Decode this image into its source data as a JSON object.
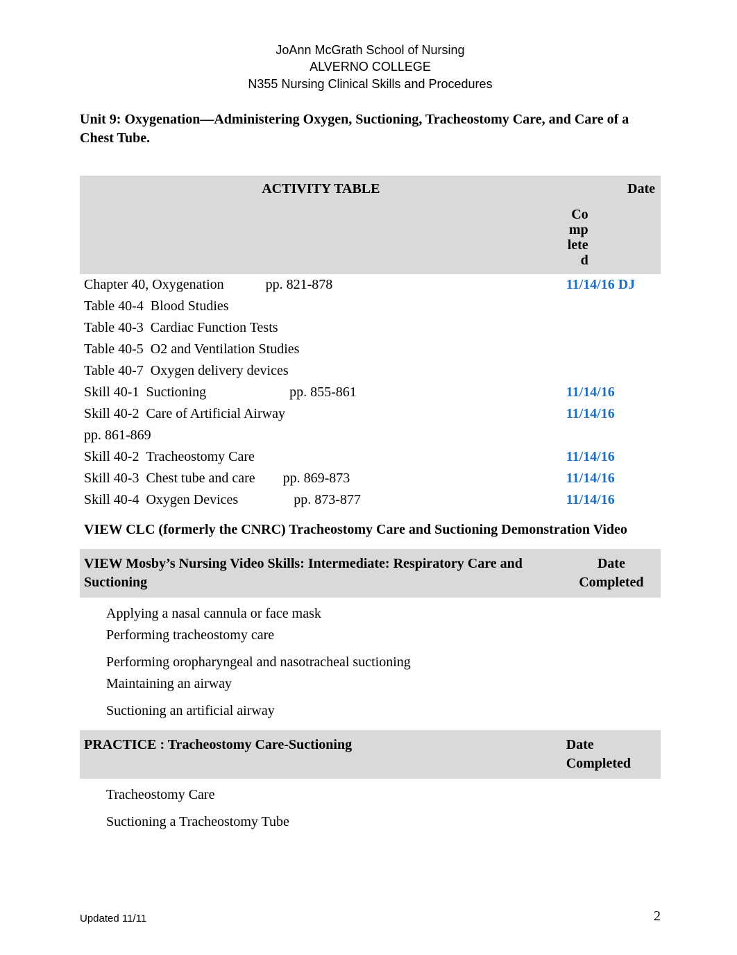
{
  "header": {
    "line1": "JoAnn McGrath School of Nursing",
    "line2": "ALVERNO COLLEGE",
    "line3": "N355 Nursing Clinical Skills and Procedures"
  },
  "unit_title": "Unit 9: Oxygenation—Administering Oxygen, Suctioning, Tracheostomy Care, and Care of a Chest Tube.",
  "activity_table": {
    "header_left": "ACTIVITY TABLE",
    "header_right_top": "Date",
    "header_right_sub": "Completed",
    "rows": [
      {
        "left": "Chapter 40, Oxygenation   pp. 821-878",
        "right": "11/14/16 DJ",
        "right_color": "#1f6fc0"
      },
      {
        "left": "Table 40-4  Blood Studies",
        "right": ""
      },
      {
        "left": "Table 40-3  Cardiac Function Tests",
        "right": ""
      },
      {
        "left": "Table 40-5  O2 and Ventilation Studies",
        "right": ""
      },
      {
        "left": "Table 40-7  Oxygen delivery devices",
        "right": ""
      },
      {
        "left": "Skill 40-1  Suctioning      pp. 855-861",
        "right": "11/14/16",
        "right_color": "#1f6fc0"
      },
      {
        "left": "Skill 40-2  Care of Artificial Airway",
        "right": "11/14/16",
        "right_color": "#1f6fc0"
      },
      {
        "left": "pp. 861-869",
        "right": ""
      },
      {
        "left": "Skill 40-2  Tracheostomy Care",
        "right": "11/14/16",
        "right_color": "#1f6fc0"
      },
      {
        "left": "Skill 40-3  Chest tube and care  pp. 869-873",
        "right": "11/14/16",
        "right_color": "#1f6fc0"
      },
      {
        "left": "Skill 40-4  Oxygen Devices    pp. 873-877",
        "right": "11/14/16",
        "right_color": "#1f6fc0"
      }
    ],
    "view_clc": "VIEW CLC (formerly the CNRC) Tracheostomy Care and Suctioning Demonstration Video",
    "mosby_header_left": "VIEW Mosby’s Nursing Video Skills: Intermediate: Respiratory Care and Suctioning",
    "mosby_header_right": "Date Completed",
    "mosby_items": [
      "Applying a nasal cannula or face mask",
      "Performing tracheostomy care",
      "Performing oropharyngeal and nasotracheal suctioning",
      "Maintaining an airway",
      "Suctioning an artificial airway"
    ],
    "practice_header_left": "PRACTICE : Tracheostomy Care-Suctioning",
    "practice_header_right": "Date Completed",
    "practice_items": [
      "Tracheostomy Care",
      "Suctioning  a Tracheostomy Tube"
    ]
  },
  "footer": {
    "updated": "Updated 11/11",
    "page": "2"
  },
  "style": {
    "page_bg": "#ffffff",
    "header_bg": "#d9d9d9",
    "blue": "#1f6fc0",
    "body_font_size": 20,
    "header_font_size": 18
  }
}
